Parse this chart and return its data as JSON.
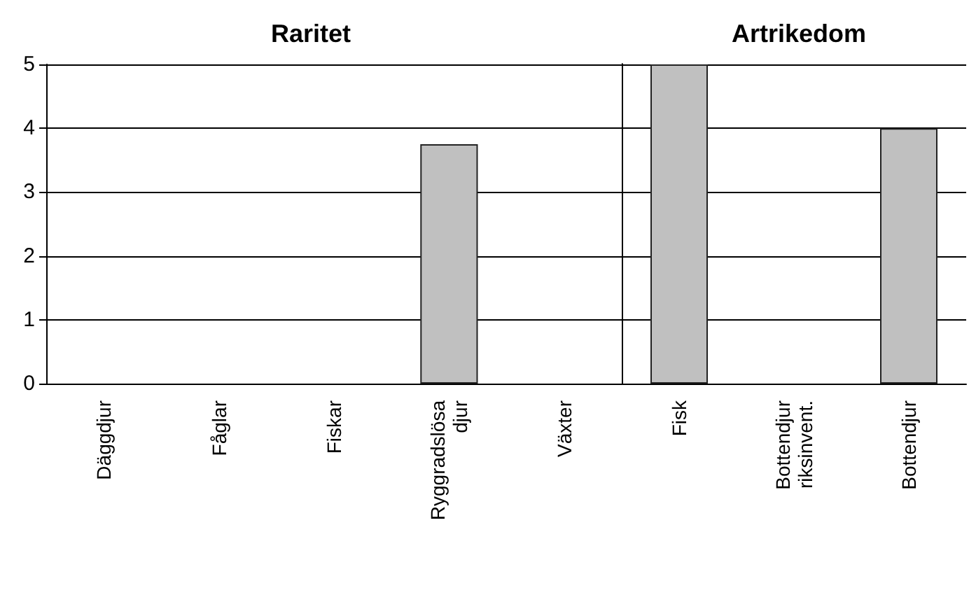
{
  "chart_data": [
    {
      "type": "bar",
      "title": "Raritet",
      "categories": [
        "Däggdjur",
        "Fåglar",
        "Fiskar",
        "Ryggradslösa\ndjur",
        "Växter"
      ],
      "values": [
        0,
        0,
        0,
        3.75,
        0
      ],
      "color": "#c0c0c0",
      "ylim": [
        0,
        5
      ],
      "yticks": [
        0,
        1,
        2,
        3,
        4,
        5
      ],
      "grid": "y"
    },
    {
      "type": "bar",
      "title": "Artrikedom",
      "categories": [
        "Fisk",
        "Bottendjur\nriksinvent.",
        "Bottendjur"
      ],
      "values": [
        5,
        0,
        4
      ],
      "color": "#c0c0c0",
      "ylim": [
        0,
        5
      ],
      "yticks": [
        0,
        1,
        2,
        3,
        4,
        5
      ],
      "grid": "y",
      "tick_labels": "x"
    }
  ]
}
